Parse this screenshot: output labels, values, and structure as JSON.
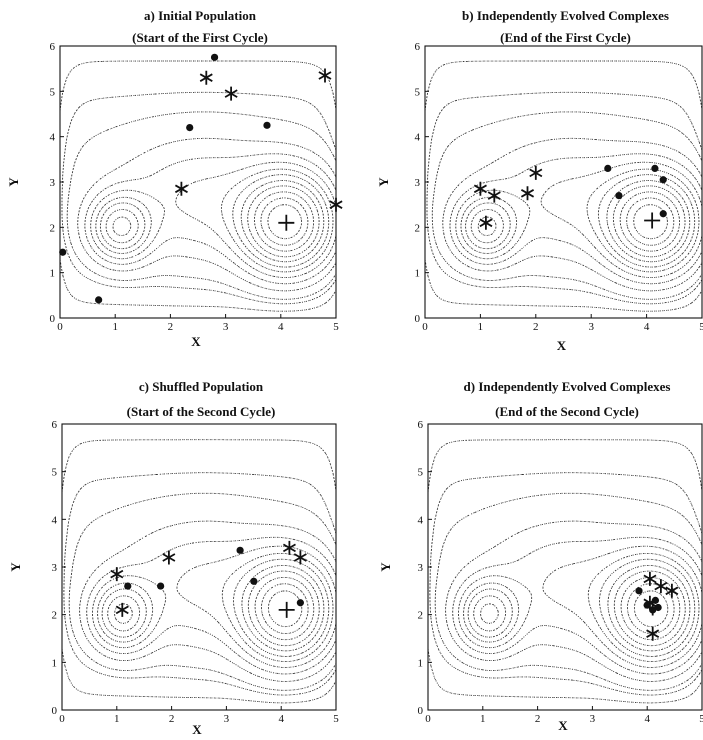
{
  "chart_data": [
    {
      "type": "scatter",
      "title": "a) Initial Population",
      "subtitle": "(Start of the First Cycle)",
      "xlabel": "X",
      "ylabel": "Y",
      "xlim": [
        0,
        5
      ],
      "ylim": [
        0,
        6
      ],
      "xticks": [
        "0",
        "1",
        "2",
        "3",
        "4",
        "5"
      ],
      "yticks": [
        "0",
        "1",
        "2",
        "3",
        "4",
        "5",
        "6"
      ],
      "contours": true,
      "series": [
        {
          "marker": "star",
          "points": [
            [
              2.65,
              5.3
            ],
            [
              3.1,
              4.95
            ],
            [
              4.8,
              5.35
            ],
            [
              2.2,
              2.85
            ],
            [
              5.0,
              2.5
            ]
          ]
        },
        {
          "marker": "dot",
          "points": [
            [
              2.8,
              5.75
            ],
            [
              2.35,
              4.2
            ],
            [
              3.75,
              4.25
            ],
            [
              0.05,
              1.45
            ],
            [
              0.7,
              0.4
            ]
          ]
        },
        {
          "marker": "plus",
          "points": [
            [
              4.1,
              2.1
            ]
          ]
        }
      ]
    },
    {
      "type": "scatter",
      "title": "b) Independently Evolved Complexes",
      "subtitle": "(End of the First Cycle)",
      "xlabel": "X",
      "ylabel": "Y",
      "xlim": [
        0,
        5
      ],
      "ylim": [
        0,
        6
      ],
      "xticks": [
        "0",
        "1",
        "2",
        "3",
        "4",
        "5"
      ],
      "yticks": [
        "0",
        "1",
        "2",
        "3",
        "4",
        "5",
        "6"
      ],
      "contours": true,
      "series": [
        {
          "marker": "star",
          "points": [
            [
              1.0,
              2.85
            ],
            [
              1.25,
              2.7
            ],
            [
              2.0,
              3.2
            ],
            [
              1.85,
              2.75
            ],
            [
              1.1,
              2.1
            ]
          ]
        },
        {
          "marker": "dot",
          "points": [
            [
              3.3,
              3.3
            ],
            [
              3.5,
              2.7
            ],
            [
              4.15,
              3.3
            ],
            [
              4.3,
              3.05
            ],
            [
              4.3,
              2.3
            ]
          ]
        },
        {
          "marker": "plus",
          "points": [
            [
              4.1,
              2.15
            ]
          ]
        }
      ]
    },
    {
      "type": "scatter",
      "title": "c) Shuffled Population",
      "subtitle": "(Start of the Second Cycle)",
      "xlabel": "X",
      "ylabel": "Y",
      "xlim": [
        0,
        5
      ],
      "ylim": [
        0,
        6
      ],
      "xticks": [
        "0",
        "1",
        "2",
        "3",
        "4",
        "5"
      ],
      "yticks": [
        "0",
        "1",
        "2",
        "3",
        "4",
        "5",
        "6"
      ],
      "contours": true,
      "series": [
        {
          "marker": "star",
          "points": [
            [
              1.0,
              2.85
            ],
            [
              1.1,
              2.1
            ],
            [
              1.95,
              3.2
            ],
            [
              4.15,
              3.4
            ],
            [
              4.35,
              3.2
            ]
          ]
        },
        {
          "marker": "dot",
          "points": [
            [
              1.2,
              2.6
            ],
            [
              1.8,
              2.6
            ],
            [
              3.25,
              3.35
            ],
            [
              3.5,
              2.7
            ],
            [
              4.35,
              2.25
            ]
          ]
        },
        {
          "marker": "plus",
          "points": [
            [
              4.1,
              2.1
            ]
          ]
        }
      ]
    },
    {
      "type": "scatter",
      "title": "d) Independently Evolved Complexes",
      "subtitle": "(End of the Second Cycle)",
      "xlabel": "X",
      "ylabel": "Y",
      "xlim": [
        0,
        5
      ],
      "ylim": [
        0,
        6
      ],
      "xticks": [
        "0",
        "1",
        "2",
        "3",
        "4",
        "5"
      ],
      "yticks": [
        "0",
        "1",
        "2",
        "3",
        "4",
        "5",
        "6"
      ],
      "contours": true,
      "series": [
        {
          "marker": "star",
          "points": [
            [
              4.05,
              2.75
            ],
            [
              4.25,
              2.6
            ],
            [
              4.45,
              2.5
            ],
            [
              4.1,
              1.6
            ],
            [
              4.05,
              2.25
            ]
          ]
        },
        {
          "marker": "dot",
          "points": [
            [
              3.85,
              2.5
            ],
            [
              4.0,
              2.2
            ],
            [
              4.1,
              2.1
            ],
            [
              4.15,
              2.3
            ],
            [
              4.2,
              2.15
            ]
          ]
        },
        {
          "marker": "plus",
          "points": [
            [
              4.1,
              2.15
            ]
          ]
        }
      ]
    }
  ]
}
